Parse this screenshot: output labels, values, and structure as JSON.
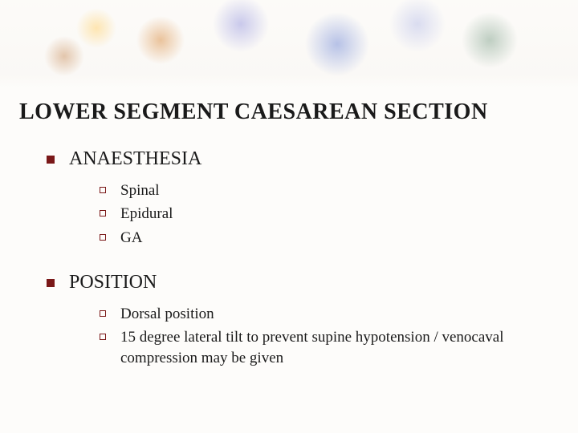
{
  "title": "LOWER SEGMENT CAESAREAN SECTION",
  "colors": {
    "bullet_primary": "#7a1818",
    "text": "#1a1a1a",
    "background": "#fdfcfa"
  },
  "typography": {
    "title_fontsize": 28,
    "level1_fontsize": 24,
    "level2_fontsize": 19,
    "font_family": "Georgia / Times New Roman serif"
  },
  "sections": [
    {
      "heading": "ANAESTHESIA",
      "items": [
        {
          "text": "Spinal"
        },
        {
          "text": "Epidural"
        },
        {
          "text": "GA"
        }
      ]
    },
    {
      "heading": "POSITION",
      "items": [
        {
          "text": "Dorsal position"
        },
        {
          "text": "15 degree lateral tilt to prevent supine hypotension / venocaval compression may be given"
        }
      ]
    }
  ]
}
